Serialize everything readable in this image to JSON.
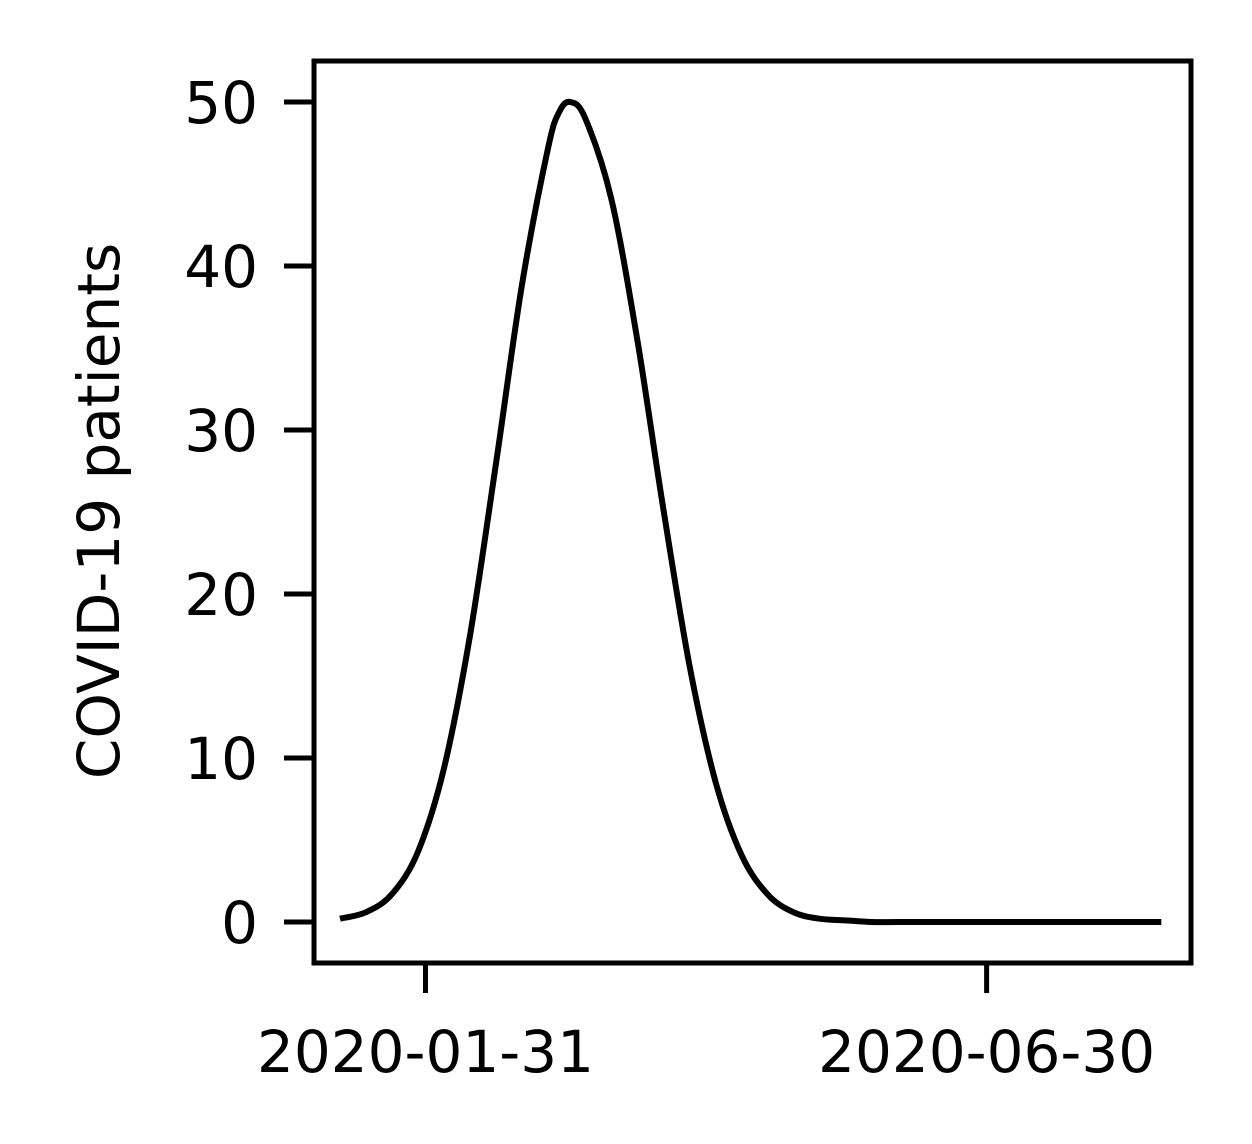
{
  "chart_data": {
    "type": "line",
    "title": "",
    "xlabel": "",
    "ylabel": "COVID-19 patients",
    "x_axis_type": "date",
    "xlim": [
      "2020-01-01",
      "2020-08-24"
    ],
    "ylim": [
      -2.5,
      52.5
    ],
    "x_ticks": [
      "2020-01-31",
      "2020-06-30"
    ],
    "y_ticks": [
      0,
      10,
      20,
      30,
      40,
      50
    ],
    "grid": false,
    "legend": "none",
    "line_color": "#000000",
    "series": [
      {
        "x": [
          "2020-01-08",
          "2020-01-15",
          "2020-01-22",
          "2020-01-29",
          "2020-02-05",
          "2020-02-12",
          "2020-02-19",
          "2020-02-26",
          "2020-03-04",
          "2020-03-07",
          "2020-03-10",
          "2020-03-14",
          "2020-03-21",
          "2020-03-28",
          "2020-04-04",
          "2020-04-11",
          "2020-04-18",
          "2020-04-25",
          "2020-05-02",
          "2020-05-09",
          "2020-05-16",
          "2020-05-23",
          "2020-05-30",
          "2020-06-06",
          "2020-06-13",
          "2020-06-20",
          "2020-06-30",
          "2020-07-10",
          "2020-07-20",
          "2020-07-30",
          "2020-08-09",
          "2020-08-16"
        ],
        "y": [
          0.2,
          0.6,
          1.7,
          4.3,
          9.4,
          17.5,
          28.0,
          38.9,
          47.2,
          49.4,
          50.0,
          49.0,
          44.1,
          35.5,
          25.2,
          15.7,
          8.6,
          4.1,
          1.7,
          0.6,
          0.2,
          0.1,
          0.0,
          0.0,
          0.0,
          0.0,
          0.0,
          0.0,
          0.0,
          0.0,
          0.0,
          0.0
        ]
      }
    ]
  }
}
